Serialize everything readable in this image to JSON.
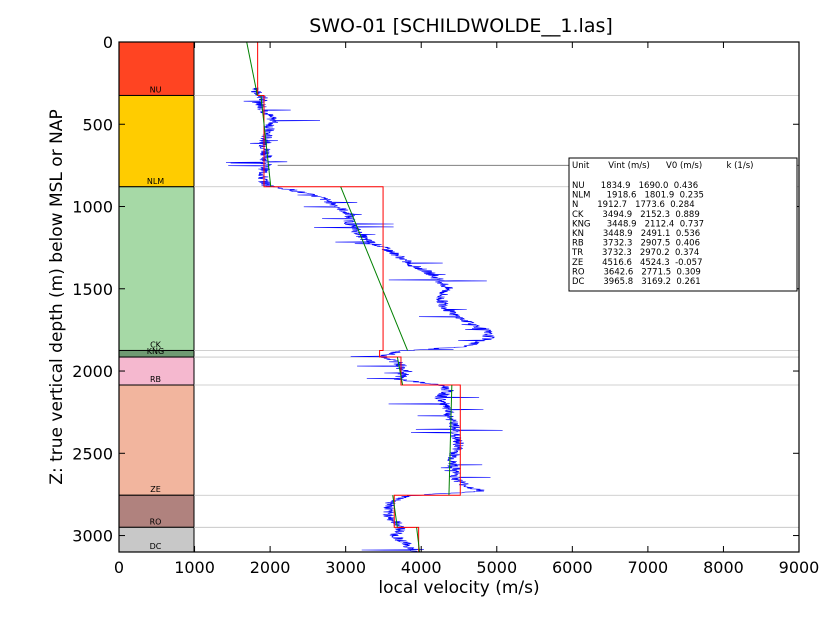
{
  "chart_data": {
    "type": "line",
    "title": "SWO-01 [SCHILDWOLDE__1.las]",
    "xlabel": "local velocity (m/s)",
    "ylabel": "Z: true vertical depth (m) below MSL or NAP",
    "xlim": [
      0,
      9000
    ],
    "ylim": [
      3100,
      0
    ],
    "x_ticks": [
      "0",
      "1000",
      "2000",
      "3000",
      "4000",
      "5000",
      "6000",
      "7000",
      "8000",
      "9000"
    ],
    "y_ticks": [
      "0",
      "500",
      "1000",
      "1500",
      "2000",
      "2500",
      "3000"
    ],
    "y_tick_values": [
      0,
      500,
      1000,
      1500,
      2000,
      2500,
      3000
    ],
    "grid": false,
    "colors": {
      "log": "#0000ff",
      "interval": "#ff0000",
      "linear": "#008000",
      "boundary": "#c0c0c0",
      "marker_line": "#808080"
    },
    "units": [
      {
        "name": "NU",
        "top": 0,
        "base": 325,
        "color": "#ff4422",
        "label": "NU"
      },
      {
        "name": "NLM",
        "top": 325,
        "base": 880,
        "color": "#ffcc00",
        "label": "NLM"
      },
      {
        "name": "N",
        "top": 880,
        "base": 1875,
        "color": "#a6d9a6",
        "label": "CK"
      },
      {
        "name": "KNG",
        "top": 1875,
        "base": 1915,
        "color": "#6f9a72",
        "label": "KNG"
      },
      {
        "name": "RB",
        "top": 1915,
        "base": 2085,
        "color": "#f5b8cf",
        "label": "RB"
      },
      {
        "name": "ZE",
        "top": 2085,
        "base": 2755,
        "color": "#f2b59e",
        "label": "ZE"
      },
      {
        "name": "RO",
        "top": 2755,
        "base": 2950,
        "color": "#b0827e",
        "label": "RO"
      },
      {
        "name": "DC",
        "top": 2950,
        "base": 3100,
        "color": "#c8c8c8",
        "label": "DC"
      }
    ],
    "boundaries": [
      325,
      880,
      1875,
      1915,
      2085,
      2755,
      2950
    ],
    "interval_velocity": [
      {
        "top": 0,
        "base": 325,
        "v": 1835
      },
      {
        "top": 325,
        "base": 880,
        "v": 1919
      },
      {
        "top": 880,
        "base": 1875,
        "v": 3495
      },
      {
        "top": 1875,
        "base": 1915,
        "v": 3449
      },
      {
        "top": 1915,
        "base": 2085,
        "v": 3732
      },
      {
        "top": 2085,
        "base": 2755,
        "v": 4517
      },
      {
        "top": 2755,
        "base": 2950,
        "v": 3643
      },
      {
        "top": 2950,
        "base": 3100,
        "v": 3966
      }
    ],
    "linear_trend": [
      {
        "top": 0,
        "base": 325,
        "v0": 1690,
        "k": 0.436
      },
      {
        "top": 325,
        "base": 880,
        "v0": 1802,
        "k": 0.235
      },
      {
        "top": 880,
        "base": 1875,
        "v0": 2152,
        "k": 0.889
      },
      {
        "top": 1915,
        "base": 2085,
        "v0": 2907,
        "k": 0.406
      },
      {
        "top": 2085,
        "base": 2755,
        "v0": 4524,
        "k": -0.057
      },
      {
        "top": 2755,
        "base": 2950,
        "v0": 2772,
        "k": 0.309
      },
      {
        "top": 2950,
        "base": 3100,
        "v0": 3169,
        "k": 0.261
      }
    ],
    "marker_line_depth": 750,
    "log_profile": [
      [
        280,
        1850
      ],
      [
        300,
        1800
      ],
      [
        330,
        1900
      ],
      [
        380,
        1880
      ],
      [
        430,
        1950
      ],
      [
        480,
        2050
      ],
      [
        530,
        1980
      ],
      [
        580,
        1950
      ],
      [
        630,
        1930
      ],
      [
        680,
        1950
      ],
      [
        730,
        1940
      ],
      [
        780,
        1920
      ],
      [
        830,
        1900
      ],
      [
        870,
        1950
      ],
      [
        900,
        2300
      ],
      [
        950,
        2700
      ],
      [
        1000,
        2900
      ],
      [
        1050,
        3050
      ],
      [
        1100,
        3050
      ],
      [
        1150,
        3150
      ],
      [
        1200,
        3250
      ],
      [
        1250,
        3500
      ],
      [
        1300,
        3700
      ],
      [
        1350,
        3850
      ],
      [
        1400,
        4100
      ],
      [
        1450,
        4250
      ],
      [
        1500,
        4350
      ],
      [
        1550,
        4250
      ],
      [
        1600,
        4300
      ],
      [
        1650,
        4400
      ],
      [
        1700,
        4600
      ],
      [
        1750,
        4850
      ],
      [
        1800,
        4900
      ],
      [
        1850,
        4600
      ],
      [
        1880,
        3700
      ],
      [
        1910,
        3500
      ],
      [
        1950,
        3700
      ],
      [
        2000,
        3800
      ],
      [
        2050,
        3700
      ],
      [
        2090,
        4300
      ],
      [
        2120,
        4350
      ],
      [
        2160,
        4250
      ],
      [
        2200,
        4300
      ],
      [
        2250,
        4350
      ],
      [
        2300,
        4400
      ],
      [
        2350,
        4450
      ],
      [
        2400,
        4450
      ],
      [
        2450,
        4500
      ],
      [
        2500,
        4450
      ],
      [
        2550,
        4400
      ],
      [
        2600,
        4450
      ],
      [
        2650,
        4450
      ],
      [
        2700,
        4600
      ],
      [
        2730,
        4800
      ],
      [
        2760,
        3800
      ],
      [
        2800,
        3600
      ],
      [
        2850,
        3550
      ],
      [
        2900,
        3600
      ],
      [
        2950,
        3750
      ],
      [
        3000,
        3650
      ],
      [
        3050,
        3800
      ],
      [
        3100,
        3900
      ]
    ],
    "legend": {
      "header": "Unit       Vint (m/s)      V0 (m/s)         k (1/s)",
      "rows": [
        "NU      1834.9   1690.0  0.436",
        "NLM      1918.6   1801.9  0.235",
        "N       1912.7   1773.6  0.284",
        "CK       3494.9   2152.3  0.889",
        "KNG      3448.9   2112.4  0.737",
        "KN       3448.9   2491.1  0.536",
        "RB       3732.3   2907.5  0.406",
        "TR       3732.3   2970.2  0.374",
        "ZE       4516.6   4524.3  -0.057",
        "RO       3642.6   2771.5  0.309",
        "DC       3965.8   3169.2  0.261"
      ],
      "placement": "right"
    }
  }
}
